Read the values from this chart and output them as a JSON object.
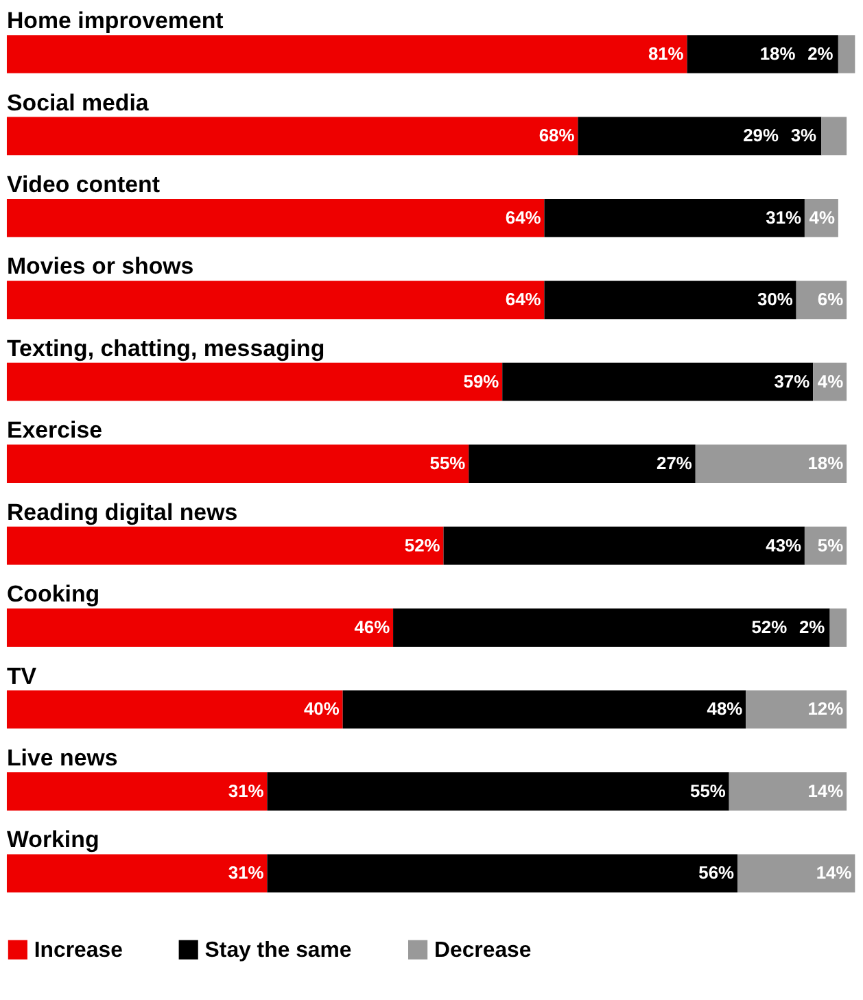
{
  "chart_data": {
    "type": "bar",
    "orientation": "horizontal",
    "stacked": true,
    "legend": "bottom",
    "categories": [
      "Home improvement",
      "Social media",
      "Video content",
      "Movies or shows",
      "Texting, chatting, messaging",
      "Exercise",
      "Reading digital news",
      "Cooking",
      "TV",
      "Live news",
      "Working"
    ],
    "series": [
      {
        "name": "Increase",
        "color": "#ee0000",
        "values": [
          81,
          68,
          64,
          64,
          59,
          55,
          52,
          46,
          40,
          31,
          31
        ],
        "value_labels": [
          "81%",
          "68%",
          "64%",
          "64%",
          "59%",
          "55%",
          "52%",
          "46%",
          "40%",
          "31%",
          "31%"
        ]
      },
      {
        "name": "Stay the same",
        "color": "#000000",
        "values": [
          18,
          29,
          31,
          30,
          37,
          27,
          43,
          52,
          48,
          55,
          56
        ],
        "value_labels": [
          "18%",
          "29%",
          "31%",
          "30%",
          "37%",
          "27%",
          "43%",
          "52%",
          "48%",
          "55%",
          "56%"
        ]
      },
      {
        "name": "Decrease",
        "color": "#999999",
        "values": [
          2,
          3,
          4,
          6,
          4,
          18,
          5,
          2,
          12,
          14,
          14
        ],
        "value_labels": [
          "2%",
          "3%",
          "4%",
          "6%",
          "4%",
          "18%",
          "5%",
          "2%",
          "12%",
          "14%",
          "14%"
        ]
      }
    ]
  }
}
